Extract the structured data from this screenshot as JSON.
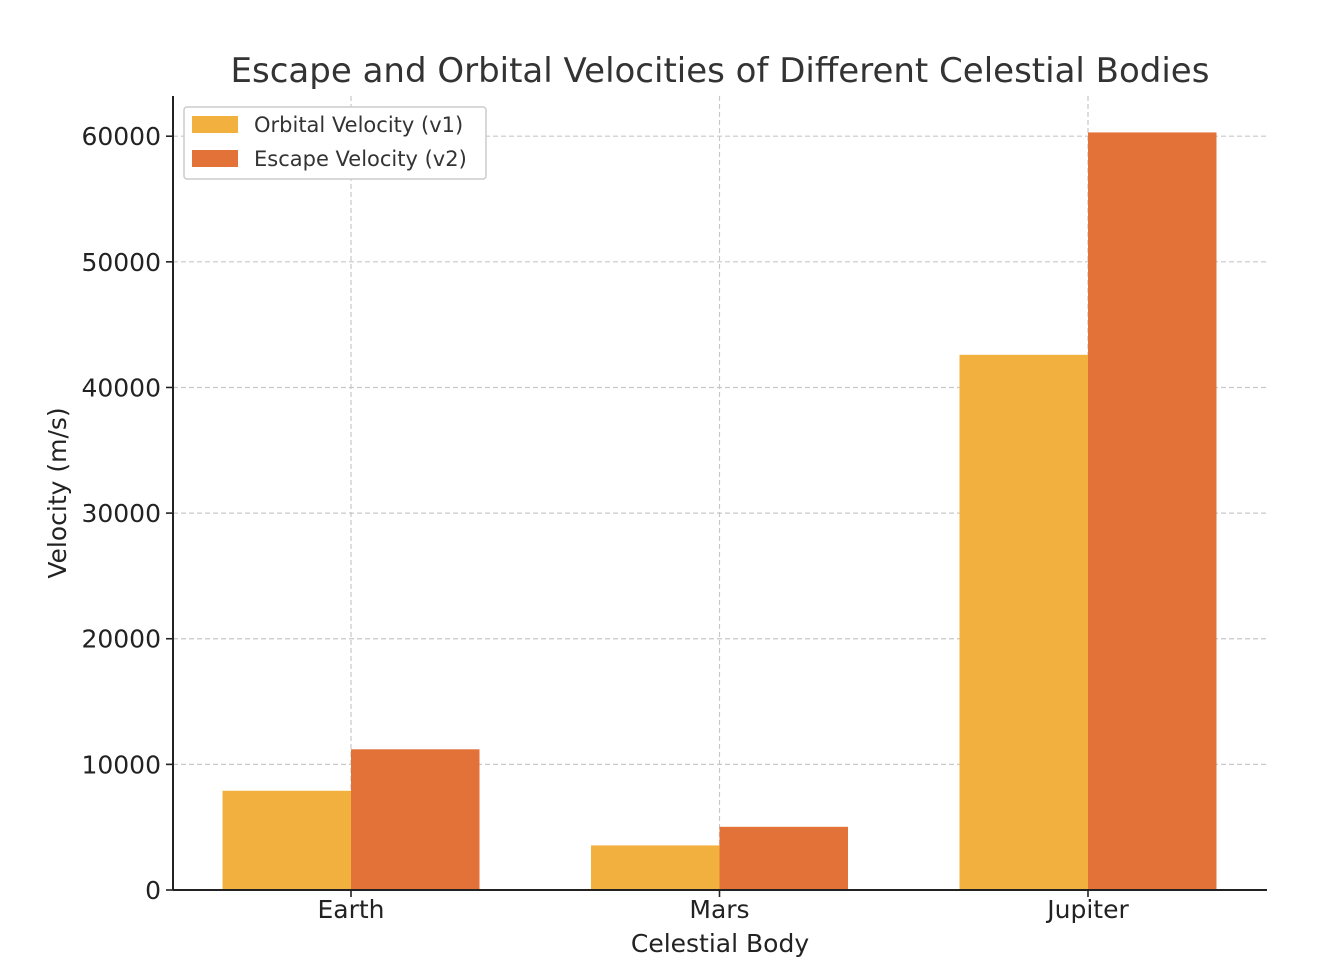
{
  "chart_data": {
    "type": "bar",
    "title": "Escape and Orbital Velocities of Different Celestial Bodies",
    "xlabel": "Celestial Body",
    "ylabel": "Velocity (m/s)",
    "categories": [
      "Earth",
      "Mars",
      "Jupiter"
    ],
    "series": [
      {
        "name": "Orbital Velocity (v1)",
        "color": "#f2b13e",
        "values": [
          7900,
          3550,
          42600
        ]
      },
      {
        "name": "Escape Velocity (v2)",
        "color": "#e37239",
        "values": [
          11200,
          5030,
          60300
        ]
      }
    ],
    "ylim": [
      0,
      63200
    ],
    "yticks": [
      0,
      10000,
      20000,
      30000,
      40000,
      50000,
      60000
    ],
    "ytick_labels": [
      "0",
      "10000",
      "20000",
      "30000",
      "40000",
      "50000",
      "60000"
    ],
    "grid": true,
    "legend": "top-left"
  }
}
